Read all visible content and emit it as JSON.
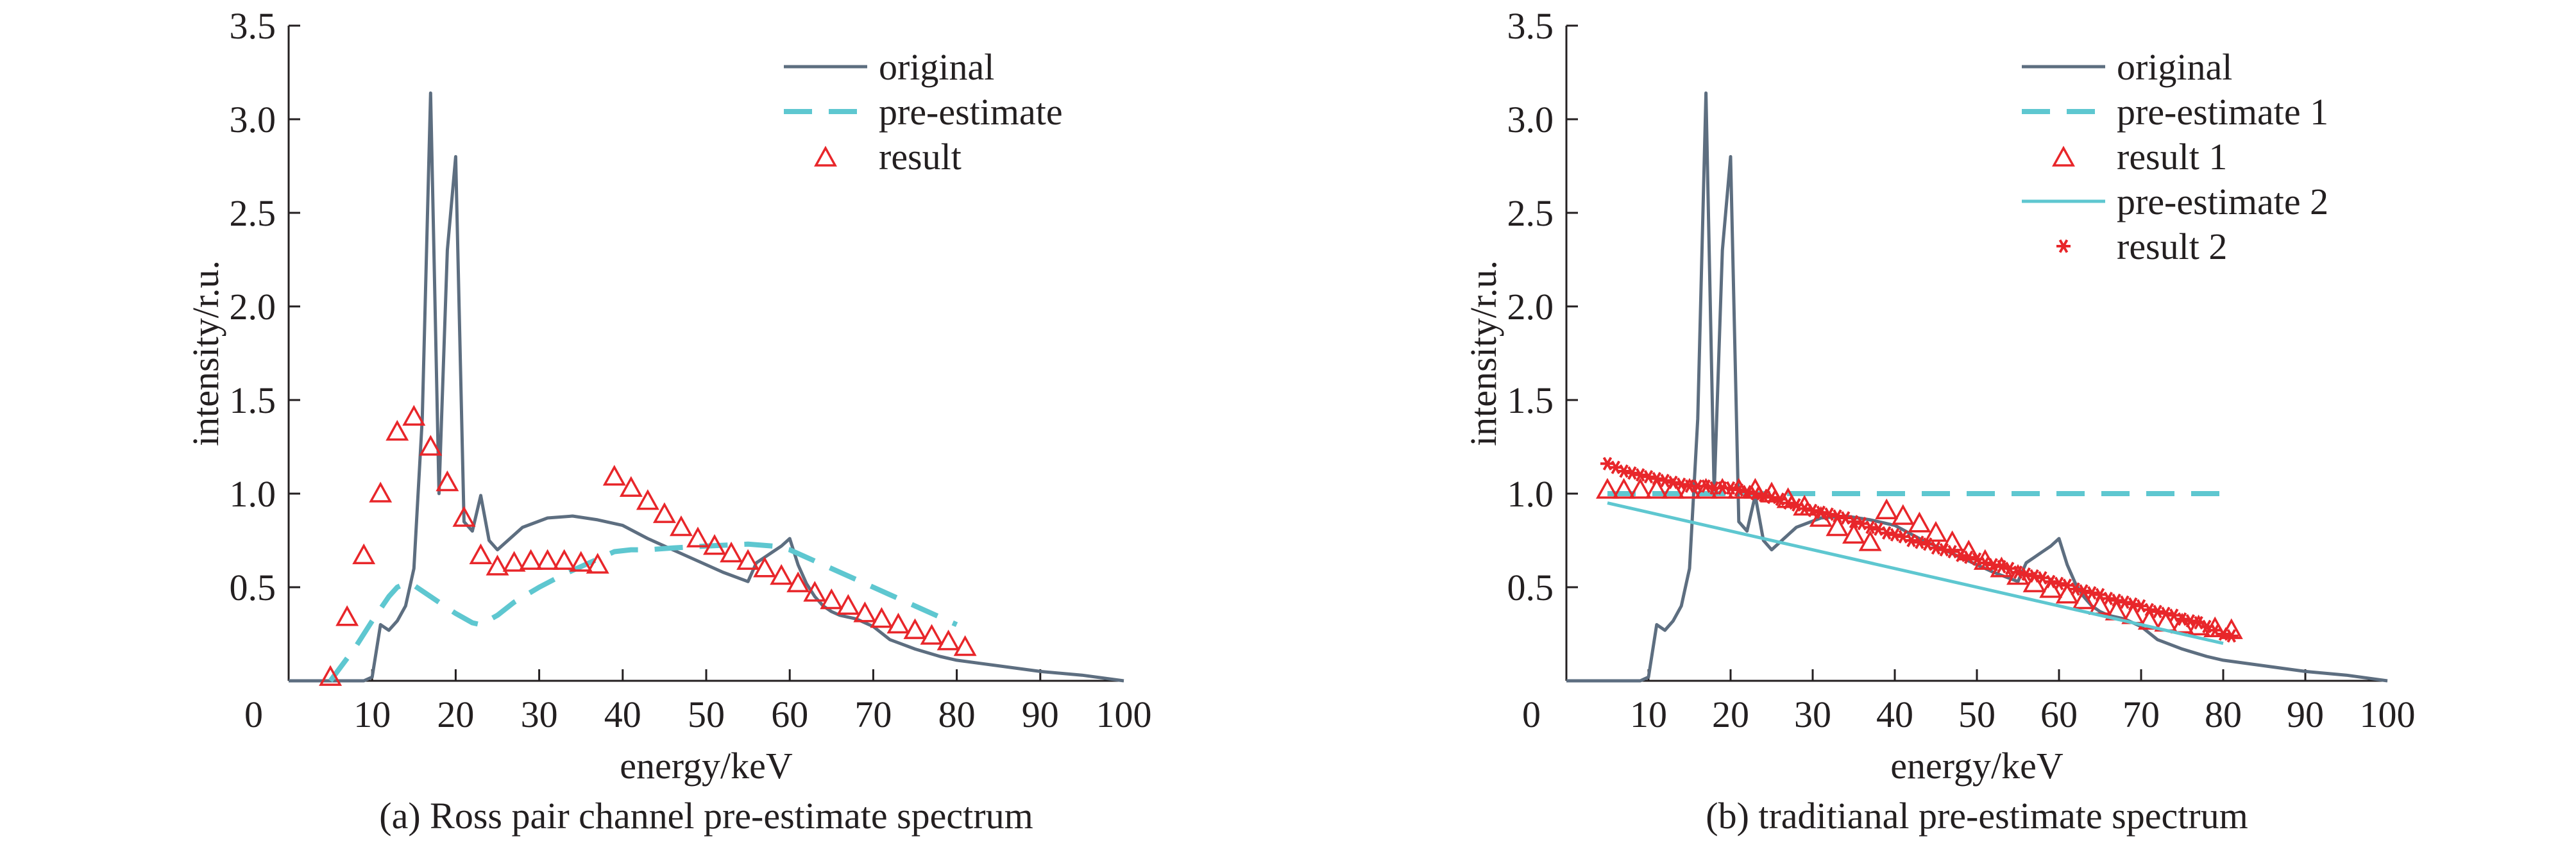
{
  "colors": {
    "original": "#5d6e80",
    "pre_estimate": "#5ec7d0",
    "result": "#e8262a",
    "axis": "#231f20"
  },
  "chart_data": [
    {
      "type": "line",
      "caption": "(a) Ross pair channel pre-estimate spectrum",
      "xlabel": "energy/keV",
      "ylabel": "intensity/r.u.",
      "xlim": [
        0,
        100
      ],
      "ylim": [
        0,
        3.5
      ],
      "xticks": [
        "0",
        "10",
        "20",
        "30",
        "40",
        "50",
        "60",
        "70",
        "80",
        "90",
        "100"
      ],
      "yticks": [
        "0.5",
        "1.0",
        "1.5",
        "2.0",
        "2.5",
        "3.0",
        "3.5"
      ],
      "grid": false,
      "legend_position": "top-right",
      "series": [
        {
          "name": "original",
          "style": "solid",
          "color": "original",
          "x": [
            0,
            5,
            9,
            10,
            11,
            12,
            13,
            14,
            15,
            16,
            17,
            18,
            19,
            20,
            21,
            22,
            23,
            24,
            25,
            28,
            31,
            34,
            37,
            40,
            43,
            46,
            49,
            52,
            55,
            56,
            57,
            58,
            59,
            60,
            61,
            62,
            63,
            64,
            65,
            66,
            68,
            70,
            72,
            75,
            78,
            80,
            85,
            90,
            95,
            100
          ],
          "y": [
            0,
            0,
            0,
            0.02,
            0.3,
            0.27,
            0.32,
            0.4,
            0.6,
            1.4,
            3.14,
            1.0,
            2.3,
            2.8,
            0.85,
            0.8,
            0.99,
            0.75,
            0.7,
            0.82,
            0.87,
            0.88,
            0.86,
            0.83,
            0.76,
            0.7,
            0.64,
            0.58,
            0.53,
            0.63,
            0.66,
            0.69,
            0.72,
            0.76,
            0.62,
            0.52,
            0.45,
            0.4,
            0.37,
            0.35,
            0.33,
            0.29,
            0.22,
            0.17,
            0.13,
            0.11,
            0.08,
            0.05,
            0.03,
            0.0
          ]
        },
        {
          "name": "pre-estimate",
          "style": "dashed",
          "color": "pre_estimate",
          "x": [
            5,
            8,
            10,
            12,
            13,
            14,
            15,
            16,
            18,
            20,
            22,
            23,
            25,
            27,
            30,
            33,
            36,
            39,
            41,
            43,
            46,
            50,
            55,
            58,
            60,
            62,
            65,
            68,
            70,
            72,
            75,
            78,
            80
          ],
          "y": [
            0.0,
            0.18,
            0.32,
            0.45,
            0.5,
            0.52,
            0.51,
            0.48,
            0.42,
            0.36,
            0.31,
            0.3,
            0.35,
            0.42,
            0.5,
            0.57,
            0.63,
            0.69,
            0.7,
            0.7,
            0.71,
            0.72,
            0.73,
            0.72,
            0.7,
            0.66,
            0.6,
            0.54,
            0.5,
            0.46,
            0.4,
            0.34,
            0.3
          ]
        },
        {
          "name": "result",
          "style": "triangle",
          "color": "result",
          "x": [
            5,
            7,
            9,
            11,
            13,
            15,
            17,
            19,
            21,
            23,
            25,
            27,
            29,
            31,
            33,
            35,
            37,
            39,
            41,
            43,
            45,
            47,
            49,
            51,
            53,
            55,
            57,
            59,
            61,
            63,
            65,
            67,
            69,
            71,
            73,
            75,
            77,
            79,
            81
          ],
          "y": [
            0.02,
            0.34,
            0.67,
            1.0,
            1.33,
            1.41,
            1.25,
            1.06,
            0.87,
            0.67,
            0.61,
            0.63,
            0.64,
            0.64,
            0.64,
            0.63,
            0.62,
            1.09,
            1.03,
            0.96,
            0.89,
            0.82,
            0.76,
            0.72,
            0.68,
            0.64,
            0.6,
            0.56,
            0.52,
            0.47,
            0.43,
            0.4,
            0.36,
            0.33,
            0.3,
            0.27,
            0.24,
            0.21,
            0.18
          ]
        }
      ]
    },
    {
      "type": "line",
      "caption": "(b) traditianal pre-estimate spectrum",
      "xlabel": "energy/keV",
      "ylabel": "intensity/r.u.",
      "xlim": [
        0,
        100
      ],
      "ylim": [
        0,
        3.5
      ],
      "xticks": [
        "0",
        "10",
        "20",
        "30",
        "40",
        "50",
        "60",
        "70",
        "80",
        "90",
        "100"
      ],
      "yticks": [
        "0.5",
        "1.0",
        "1.5",
        "2.0",
        "2.5",
        "3.0",
        "3.5"
      ],
      "grid": false,
      "legend_position": "top-right",
      "series": [
        {
          "name": "original",
          "style": "solid",
          "color": "original",
          "x": [
            0,
            5,
            9,
            10,
            11,
            12,
            13,
            14,
            15,
            16,
            17,
            18,
            19,
            20,
            21,
            22,
            23,
            24,
            25,
            28,
            31,
            34,
            37,
            40,
            43,
            46,
            49,
            52,
            55,
            56,
            57,
            58,
            59,
            60,
            61,
            62,
            63,
            64,
            65,
            66,
            68,
            70,
            72,
            75,
            78,
            80,
            85,
            90,
            95,
            100
          ],
          "y": [
            0,
            0,
            0,
            0.02,
            0.3,
            0.27,
            0.32,
            0.4,
            0.6,
            1.4,
            3.14,
            1.0,
            2.3,
            2.8,
            0.85,
            0.8,
            0.99,
            0.75,
            0.7,
            0.82,
            0.87,
            0.88,
            0.86,
            0.83,
            0.76,
            0.7,
            0.64,
            0.58,
            0.53,
            0.63,
            0.66,
            0.69,
            0.72,
            0.76,
            0.62,
            0.52,
            0.45,
            0.4,
            0.37,
            0.35,
            0.33,
            0.29,
            0.22,
            0.17,
            0.13,
            0.11,
            0.08,
            0.05,
            0.03,
            0.0
          ]
        },
        {
          "name": "pre-estimate 1",
          "style": "dashed",
          "color": "pre_estimate",
          "x": [
            5,
            80
          ],
          "y": [
            1.0,
            1.0
          ]
        },
        {
          "name": "result 1",
          "style": "triangle",
          "color": "result",
          "x": [
            5,
            7,
            9,
            11,
            13,
            15,
            17,
            19,
            21,
            23,
            25,
            27,
            29,
            31,
            33,
            35,
            37,
            39,
            41,
            43,
            45,
            47,
            49,
            51,
            53,
            55,
            57,
            59,
            61,
            63,
            65,
            67,
            69,
            71,
            73,
            75,
            77,
            79,
            81
          ],
          "y": [
            1.02,
            1.02,
            1.02,
            1.02,
            1.02,
            1.02,
            1.02,
            1.02,
            1.02,
            1.02,
            1.0,
            0.97,
            0.93,
            0.87,
            0.82,
            0.78,
            0.74,
            0.91,
            0.88,
            0.84,
            0.79,
            0.74,
            0.69,
            0.64,
            0.6,
            0.56,
            0.52,
            0.49,
            0.46,
            0.43,
            0.4,
            0.37,
            0.35,
            0.32,
            0.31,
            0.3,
            0.29,
            0.28,
            0.27
          ]
        },
        {
          "name": "pre-estimate 2",
          "style": "solid",
          "color": "pre_estimate",
          "x": [
            5,
            80
          ],
          "y": [
            0.95,
            0.2
          ]
        },
        {
          "name": "result 2",
          "style": "asterisk",
          "color": "result",
          "x": [
            5,
            6,
            7,
            8,
            9,
            10,
            11,
            12,
            13,
            14,
            15,
            16,
            17,
            18,
            19,
            20,
            21,
            22,
            23,
            24,
            25,
            26,
            27,
            28,
            29,
            30,
            31,
            32,
            33,
            34,
            35,
            36,
            37,
            38,
            39,
            40,
            41,
            42,
            43,
            44,
            45,
            46,
            47,
            48,
            49,
            50,
            51,
            52,
            53,
            54,
            55,
            56,
            57,
            58,
            59,
            60,
            61,
            62,
            63,
            64,
            65,
            66,
            67,
            68,
            69,
            70,
            71,
            72,
            73,
            74,
            75,
            76,
            77,
            78,
            79,
            80,
            81
          ],
          "y": [
            1.16,
            1.14,
            1.12,
            1.11,
            1.1,
            1.09,
            1.08,
            1.07,
            1.06,
            1.05,
            1.04,
            1.04,
            1.04,
            1.03,
            1.03,
            1.03,
            1.02,
            1.01,
            1.0,
            0.99,
            0.98,
            0.97,
            0.95,
            0.94,
            0.92,
            0.91,
            0.9,
            0.89,
            0.88,
            0.87,
            0.85,
            0.84,
            0.82,
            0.81,
            0.79,
            0.78,
            0.77,
            0.75,
            0.74,
            0.73,
            0.71,
            0.7,
            0.69,
            0.67,
            0.66,
            0.65,
            0.63,
            0.62,
            0.61,
            0.6,
            0.58,
            0.57,
            0.56,
            0.55,
            0.53,
            0.52,
            0.51,
            0.49,
            0.48,
            0.47,
            0.46,
            0.44,
            0.43,
            0.42,
            0.41,
            0.4,
            0.38,
            0.37,
            0.36,
            0.35,
            0.33,
            0.32,
            0.31,
            0.29,
            0.27,
            0.25,
            0.24
          ]
        }
      ]
    }
  ]
}
